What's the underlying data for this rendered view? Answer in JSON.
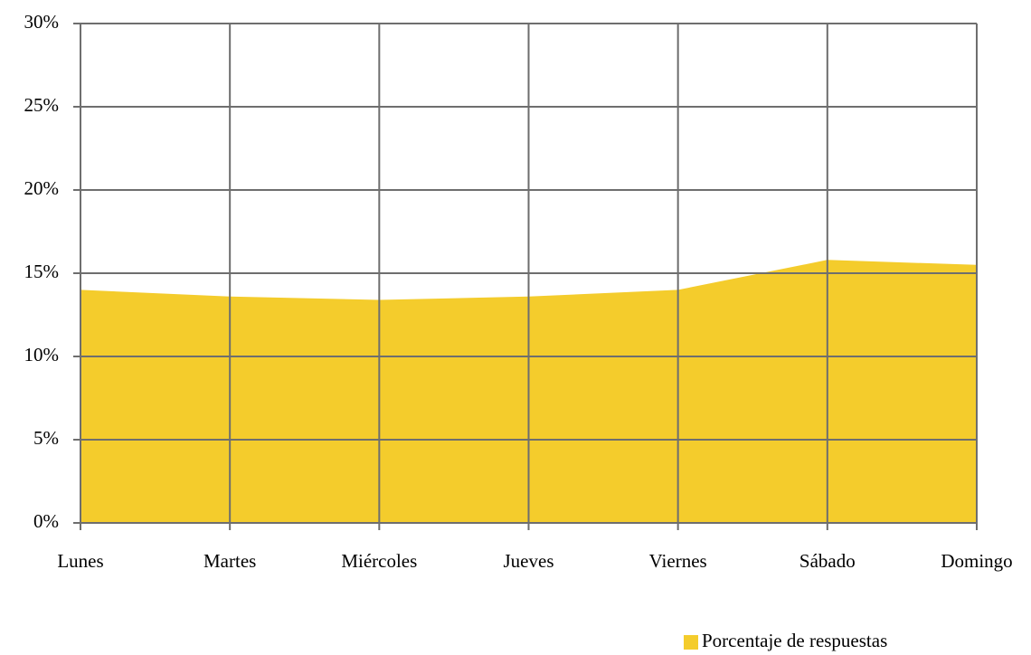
{
  "chart_data": {
    "type": "area",
    "categories": [
      "Lunes",
      "Martes",
      "Miércoles",
      "Jueves",
      "Viernes",
      "Sábado",
      "Domingo"
    ],
    "series": [
      {
        "name": "Porcentaje de respuestas",
        "color": "#f4cc2c",
        "values": [
          14,
          13.6,
          13.4,
          13.6,
          14,
          15.8,
          15.5
        ]
      }
    ],
    "ylim": [
      0,
      30
    ],
    "yticks": [
      {
        "value": 0,
        "label": "0%"
      },
      {
        "value": 5,
        "label": "5%"
      },
      {
        "value": 10,
        "label": "10%"
      },
      {
        "value": 15,
        "label": "15%"
      },
      {
        "value": 20,
        "label": "20%"
      },
      {
        "value": 25,
        "label": "25%"
      },
      {
        "value": 30,
        "label": "30%"
      }
    ],
    "grid": true,
    "legend": "bottom-right"
  }
}
